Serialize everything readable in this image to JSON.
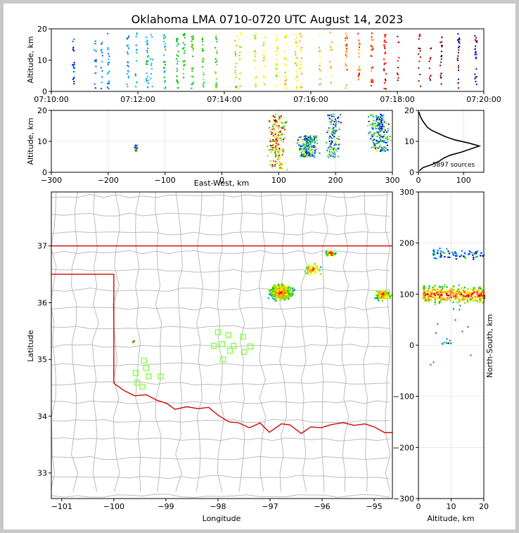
{
  "title": "Oklahoma LMA 0710-0720 UTC August 14, 2023",
  "panels": {
    "time_height": {
      "ylabel": "Altitude, km",
      "yticks": [
        "0",
        "10",
        "20"
      ],
      "xticks": [
        "07:10:00",
        "07:12:00",
        "07:14:00",
        "07:16:00",
        "07:18:00",
        "07:20:00"
      ]
    },
    "ew_height": {
      "ylabel": "Altitude, km",
      "xlabel": "East-West, km",
      "yticks": [
        "0",
        "10",
        "20"
      ],
      "xticks": [
        "−300",
        "−200",
        "−100",
        "0",
        "100",
        "200",
        "300"
      ]
    },
    "histogram": {
      "yticks": [
        "0",
        "10",
        "20"
      ],
      "xticks": [
        "0",
        "100"
      ],
      "annotation": "5897 sources"
    },
    "map": {
      "ylabel": "Latitude",
      "xlabel": "Longitude",
      "yticks": [
        "33",
        "34",
        "35",
        "36",
        "37"
      ],
      "xticks": [
        "−101",
        "−100",
        "−99",
        "−98",
        "−97",
        "−96",
        "−95"
      ]
    },
    "ns_height": {
      "ylabel": "North-South, km",
      "xlabel": "Altitude, km",
      "yticks": [
        "300",
        "200",
        "100",
        "0",
        "−100",
        "−200",
        "−300"
      ],
      "xticks": [
        "0",
        "10",
        "20"
      ]
    }
  },
  "colors": {
    "border": "#d40000",
    "county": "#bbbbbb",
    "station": "#7fff3f",
    "sources": [
      "#0000cc",
      "#0060ff",
      "#00b0ff",
      "#00c000",
      "#80e000",
      "#ffff00",
      "#ff9900",
      "#ff0000",
      "#800000"
    ]
  },
  "chart_data": [
    {
      "type": "scatter",
      "panel": "time_height",
      "xlabel": "",
      "ylabel": "Altitude, km",
      "xlim": [
        "07:10:00",
        "07:20:00"
      ],
      "ylim": [
        0,
        20
      ],
      "flash_times_min": [
        0.5,
        1.0,
        1.15,
        1.3,
        1.75,
        1.95,
        2.2,
        2.3,
        2.6,
        2.9,
        3.05,
        3.25,
        3.5,
        3.8,
        4.25,
        4.35,
        4.7,
        4.9,
        5.2,
        5.4,
        5.65,
        5.75,
        6.2,
        6.45,
        6.8,
        7.1,
        7.4,
        7.7,
        8.0,
        8.5,
        8.75,
        9.0,
        9.4,
        9.8
      ],
      "altitude_range_km": [
        1,
        19
      ]
    },
    {
      "type": "scatter",
      "panel": "ew_height",
      "xlabel": "East-West, km",
      "ylabel": "Altitude, km",
      "xlim": [
        -300,
        300
      ],
      "ylim": [
        0,
        20
      ],
      "clusters": [
        {
          "x_center": 95,
          "x_spread": 22,
          "z_range": [
            1,
            19
          ]
        },
        {
          "x_center": 150,
          "x_spread": 25,
          "z_range": [
            5,
            12
          ]
        },
        {
          "x_center": 195,
          "x_spread": 15,
          "z_range": [
            5,
            19
          ]
        },
        {
          "x_center": 275,
          "x_spread": 25,
          "z_range": [
            7,
            19
          ]
        },
        {
          "x_center": -152,
          "x_spread": 3,
          "z_range": [
            7,
            9
          ]
        }
      ]
    },
    {
      "type": "line",
      "panel": "histogram",
      "xlim": [
        0,
        145
      ],
      "ylim": [
        0,
        20
      ],
      "annotation": "5897 sources",
      "profile": [
        {
          "alt": 0.5,
          "count": 2
        },
        {
          "alt": 1.5,
          "count": 10
        },
        {
          "alt": 2.5,
          "count": 30
        },
        {
          "alt": 3.5,
          "count": 45
        },
        {
          "alt": 4.5,
          "count": 55
        },
        {
          "alt": 5.5,
          "count": 70
        },
        {
          "alt": 6.5,
          "count": 95
        },
        {
          "alt": 7.5,
          "count": 115
        },
        {
          "alt": 8.5,
          "count": 135
        },
        {
          "alt": 9.5,
          "count": 110
        },
        {
          "alt": 10.5,
          "count": 80
        },
        {
          "alt": 11.5,
          "count": 60
        },
        {
          "alt": 12.5,
          "count": 45
        },
        {
          "alt": 13.5,
          "count": 30
        },
        {
          "alt": 14.5,
          "count": 20
        },
        {
          "alt": 15.5,
          "count": 15
        },
        {
          "alt": 16.5,
          "count": 10
        },
        {
          "alt": 17.5,
          "count": 6
        },
        {
          "alt": 18.5,
          "count": 3
        },
        {
          "alt": 19.5,
          "count": 1
        }
      ]
    },
    {
      "type": "scatter",
      "panel": "map",
      "xlabel": "Longitude",
      "ylabel": "Latitude",
      "xlim": [
        -101.2,
        -94.65
      ],
      "ylim": [
        32.55,
        37.95
      ],
      "clusters": [
        {
          "lon": -96.8,
          "lat": 36.2,
          "size": 0.28,
          "count": 520
        },
        {
          "lon": -95.85,
          "lat": 36.88,
          "size": 0.12,
          "count": 60
        },
        {
          "lon": -96.2,
          "lat": 36.6,
          "size": 0.22,
          "count": 50
        },
        {
          "lon": -94.85,
          "lat": 36.15,
          "size": 0.2,
          "count": 150
        },
        {
          "lon": -99.63,
          "lat": 35.33,
          "size": 0.04,
          "count": 6
        }
      ],
      "stations": [
        [
          -98.0,
          35.48
        ],
        [
          -97.8,
          35.43
        ],
        [
          -97.52,
          35.4
        ],
        [
          -98.08,
          35.24
        ],
        [
          -97.92,
          35.27
        ],
        [
          -97.7,
          35.24
        ],
        [
          -97.38,
          35.23
        ],
        [
          -97.77,
          35.15
        ],
        [
          -97.5,
          35.13
        ],
        [
          -97.9,
          35.0
        ],
        [
          -99.42,
          34.98
        ],
        [
          -99.38,
          34.85
        ],
        [
          -99.58,
          34.76
        ],
        [
          -99.33,
          34.7
        ],
        [
          -99.1,
          34.7
        ],
        [
          -99.55,
          34.59
        ],
        [
          -99.45,
          34.52
        ]
      ]
    },
    {
      "type": "scatter",
      "panel": "ns_height",
      "xlabel": "Altitude, km",
      "ylabel": "North-South, km",
      "xlim": [
        0,
        20
      ],
      "ylim": [
        -300,
        300
      ],
      "clusters": [
        {
          "y_center": 100,
          "y_spread": 22,
          "z_range": [
            1,
            20
          ]
        },
        {
          "y_center": 180,
          "y_spread": 15,
          "z_range": [
            4,
            20
          ]
        },
        {
          "y_center": 5,
          "y_spread": 3,
          "z_range": [
            7,
            10
          ]
        }
      ]
    }
  ]
}
